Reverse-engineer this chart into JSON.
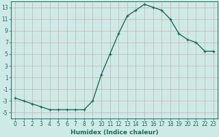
{
  "x": [
    0,
    1,
    2,
    3,
    4,
    5,
    6,
    7,
    8,
    9,
    10,
    11,
    12,
    13,
    14,
    15,
    16,
    17,
    18,
    19,
    20,
    21,
    22,
    23
  ],
  "y": [
    -2.5,
    -3.0,
    -3.5,
    -4.0,
    -4.5,
    -4.5,
    -4.5,
    -4.5,
    -4.5,
    -3.0,
    1.5,
    5.0,
    8.5,
    11.5,
    12.5,
    13.5,
    13.0,
    12.5,
    11.0,
    8.5,
    7.5,
    7.0,
    5.5,
    5.5
  ],
  "xlabel": "Humidex (Indice chaleur)",
  "line_color": "#1a6b5a",
  "marker": "+",
  "marker_color": "#1a6b5a",
  "bg_color": "#ceeae6",
  "grid_color": "#c8a0a0",
  "tick_color": "#1a6b5a",
  "label_color": "#1a6b5a",
  "xlim": [
    -0.5,
    23.5
  ],
  "ylim": [
    -6,
    14
  ],
  "yticks": [
    -5,
    -3,
    -1,
    1,
    3,
    5,
    7,
    9,
    11,
    13
  ],
  "xticks": [
    0,
    1,
    2,
    3,
    4,
    5,
    6,
    7,
    8,
    9,
    10,
    11,
    12,
    13,
    14,
    15,
    16,
    17,
    18,
    19,
    20,
    21,
    22,
    23
  ],
  "linewidth": 1.0,
  "markersize": 3.5,
  "tick_fontsize": 5.5,
  "xlabel_fontsize": 6.5
}
